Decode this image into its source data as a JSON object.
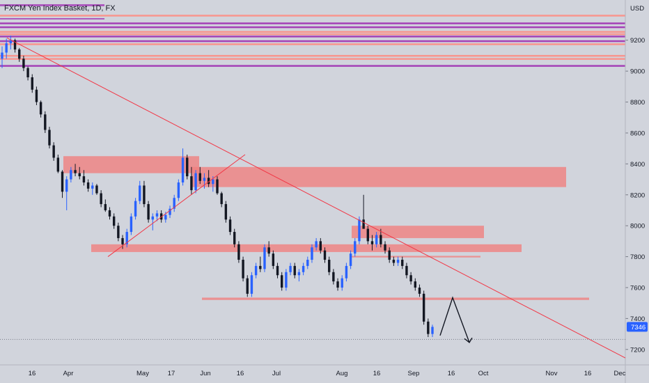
{
  "header": {
    "symbol_title": "FXCM Yen Index Basket, 1D, FX"
  },
  "chart_data": {
    "type": "candlestick",
    "title": "FXCM Yen Index Basket, 1D, FX",
    "currency_label": "USD",
    "y_ticks": [
      "9200",
      "9000",
      "8800",
      "8600",
      "8400",
      "8200",
      "8000",
      "7800",
      "7600",
      "7400",
      "7200"
    ],
    "ylim": [
      7100,
      9460
    ],
    "x_ticks": [
      "16",
      "Apr",
      "May",
      "17",
      "Jun",
      "16",
      "Jul",
      "Aug",
      "16",
      "Sep",
      "16",
      "Oct",
      "Nov",
      "16",
      "Dec"
    ],
    "last_price": "7346",
    "last_price_value": 7346,
    "colors": {
      "background": "#d1d4dc",
      "bull_candle": "#2962ff",
      "bear_candle": "#131722",
      "zone_fill": "#f08080",
      "resistance_line": "#ff8a80",
      "level_purple": "#9c27b0",
      "trendline": "#f23645",
      "price_badge": "#2962ff",
      "arrow": "#131722"
    },
    "horizontal_levels": [
      {
        "price": 9310,
        "color": "purple"
      },
      {
        "price": 9285,
        "color": "purple"
      },
      {
        "price": 9225,
        "color": "purple"
      },
      {
        "price": 9195,
        "color": "purple"
      },
      {
        "price": 9035,
        "color": "purple"
      },
      {
        "price": 9360,
        "color": "red"
      },
      {
        "price": 9255,
        "color": "red"
      },
      {
        "price": 9240,
        "color": "red"
      },
      {
        "price": 9175,
        "color": "red"
      },
      {
        "price": 9100,
        "color": "red"
      },
      {
        "price": 9080,
        "color": "red"
      }
    ],
    "candles": [
      [
        9080,
        9160,
        9020,
        9120
      ],
      [
        9120,
        9210,
        9080,
        9180
      ],
      [
        9180,
        9230,
        9140,
        9200
      ],
      [
        9200,
        9210,
        9120,
        9140
      ],
      [
        9140,
        9150,
        9060,
        9080
      ],
      [
        9080,
        9100,
        9000,
        9020
      ],
      [
        9020,
        9030,
        8940,
        8960
      ],
      [
        8960,
        8980,
        8860,
        8880
      ],
      [
        8880,
        8900,
        8780,
        8800
      ],
      [
        8800,
        8810,
        8700,
        8720
      ],
      [
        8720,
        8740,
        8600,
        8620
      ],
      [
        8620,
        8640,
        8500,
        8520
      ],
      [
        8520,
        8540,
        8420,
        8440
      ],
      [
        8440,
        8460,
        8340,
        8350
      ],
      [
        8350,
        8360,
        8180,
        8220
      ],
      [
        8220,
        8320,
        8100,
        8300
      ],
      [
        8300,
        8380,
        8280,
        8360
      ],
      [
        8360,
        8400,
        8320,
        8340
      ],
      [
        8340,
        8380,
        8300,
        8320
      ],
      [
        8320,
        8360,
        8260,
        8280
      ],
      [
        8280,
        8300,
        8220,
        8240
      ],
      [
        8240,
        8280,
        8200,
        8260
      ],
      [
        8260,
        8270,
        8200,
        8210
      ],
      [
        8210,
        8230,
        8120,
        8140
      ],
      [
        8140,
        8170,
        8090,
        8100
      ],
      [
        8100,
        8120,
        8040,
        8060
      ],
      [
        8060,
        8080,
        7980,
        8000
      ],
      [
        8000,
        8020,
        7900,
        7920
      ],
      [
        7920,
        7940,
        7850,
        7880
      ],
      [
        7880,
        7980,
        7860,
        7960
      ],
      [
        7960,
        8080,
        7940,
        8060
      ],
      [
        8060,
        8180,
        8040,
        8160
      ],
      [
        8160,
        8290,
        8140,
        8260
      ],
      [
        8260,
        8290,
        8120,
        8140
      ],
      [
        8140,
        8160,
        8020,
        8040
      ],
      [
        8040,
        8080,
        7970,
        8060
      ],
      [
        8060,
        8100,
        8030,
        8080
      ],
      [
        8080,
        8100,
        8020,
        8040
      ],
      [
        8040,
        8090,
        8020,
        8070
      ],
      [
        8070,
        8130,
        8050,
        8110
      ],
      [
        8110,
        8200,
        8090,
        8180
      ],
      [
        8180,
        8300,
        8160,
        8280
      ],
      [
        8280,
        8500,
        8260,
        8440
      ],
      [
        8440,
        8460,
        8300,
        8320
      ],
      [
        8320,
        8380,
        8200,
        8230
      ],
      [
        8230,
        8360,
        8210,
        8340
      ],
      [
        8340,
        8380,
        8270,
        8290
      ],
      [
        8290,
        8340,
        8240,
        8310
      ],
      [
        8310,
        8360,
        8250,
        8270
      ],
      [
        8270,
        8320,
        8220,
        8300
      ],
      [
        8300,
        8320,
        8200,
        8210
      ],
      [
        8210,
        8220,
        8120,
        8140
      ],
      [
        8140,
        8160,
        8020,
        8040
      ],
      [
        8040,
        8060,
        7940,
        7960
      ],
      [
        7960,
        7980,
        7860,
        7880
      ],
      [
        7880,
        7900,
        7760,
        7780
      ],
      [
        7780,
        7800,
        7640,
        7660
      ],
      [
        7660,
        7680,
        7540,
        7560
      ],
      [
        7560,
        7700,
        7540,
        7680
      ],
      [
        7680,
        7760,
        7660,
        7740
      ],
      [
        7740,
        7800,
        7700,
        7720
      ],
      [
        7720,
        7880,
        7700,
        7860
      ],
      [
        7860,
        7900,
        7800,
        7820
      ],
      [
        7820,
        7840,
        7720,
        7740
      ],
      [
        7740,
        7760,
        7660,
        7680
      ],
      [
        7680,
        7700,
        7580,
        7600
      ],
      [
        7600,
        7720,
        7580,
        7700
      ],
      [
        7700,
        7760,
        7680,
        7740
      ],
      [
        7740,
        7760,
        7660,
        7680
      ],
      [
        7680,
        7720,
        7640,
        7700
      ],
      [
        7700,
        7760,
        7680,
        7740
      ],
      [
        7740,
        7800,
        7720,
        7780
      ],
      [
        7780,
        7880,
        7760,
        7860
      ],
      [
        7860,
        7920,
        7840,
        7900
      ],
      [
        7900,
        7920,
        7820,
        7840
      ],
      [
        7840,
        7860,
        7760,
        7780
      ],
      [
        7780,
        7800,
        7680,
        7700
      ],
      [
        7700,
        7720,
        7620,
        7640
      ],
      [
        7640,
        7660,
        7580,
        7600
      ],
      [
        7600,
        7680,
        7580,
        7660
      ],
      [
        7660,
        7760,
        7640,
        7740
      ],
      [
        7740,
        7840,
        7720,
        7820
      ],
      [
        7820,
        7920,
        7800,
        7900
      ],
      [
        7900,
        8060,
        7880,
        8040
      ],
      [
        8040,
        8200,
        8000,
        7980
      ],
      [
        7980,
        8000,
        7880,
        7900
      ],
      [
        7900,
        7940,
        7840,
        7880
      ],
      [
        7880,
        7960,
        7860,
        7940
      ],
      [
        7940,
        7980,
        7860,
        7880
      ],
      [
        7880,
        7900,
        7820,
        7840
      ],
      [
        7840,
        7860,
        7760,
        7780
      ],
      [
        7780,
        7800,
        7740,
        7760
      ],
      [
        7760,
        7800,
        7740,
        7780
      ],
      [
        7780,
        7800,
        7720,
        7740
      ],
      [
        7740,
        7760,
        7660,
        7680
      ],
      [
        7680,
        7700,
        7620,
        7640
      ],
      [
        7640,
        7660,
        7580,
        7600
      ],
      [
        7600,
        7620,
        7540,
        7560
      ],
      [
        7560,
        7580,
        7360,
        7380
      ],
      [
        7380,
        7400,
        7280,
        7300
      ],
      [
        7300,
        7360,
        7280,
        7346
      ]
    ]
  }
}
